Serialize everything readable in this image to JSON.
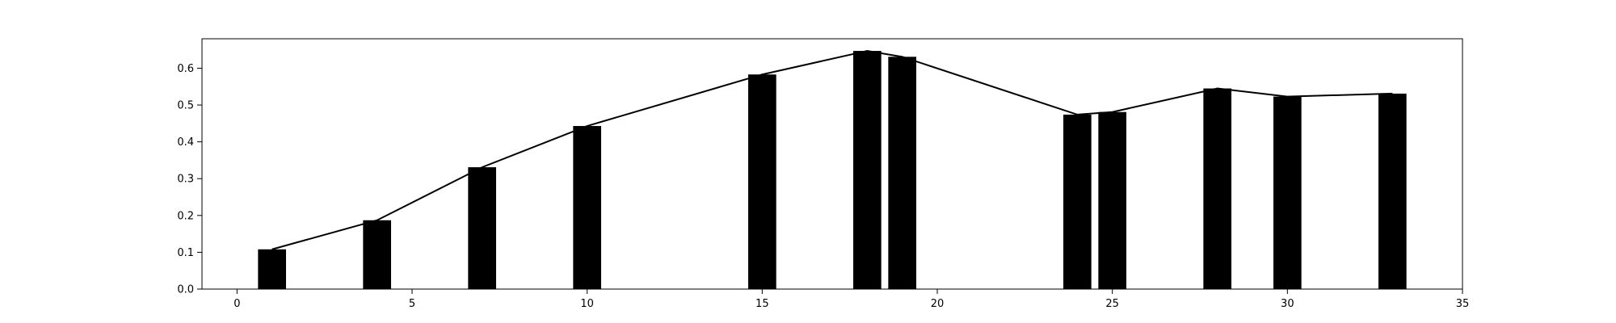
{
  "chart_data": {
    "type": "bar",
    "title": "",
    "xlabel": "",
    "ylabel": "",
    "xlim": [
      -1,
      35
    ],
    "ylim": [
      0,
      0.68
    ],
    "grid": false,
    "x": [
      1,
      4,
      7,
      10,
      15,
      18,
      19,
      24,
      25,
      28,
      30,
      33
    ],
    "values": [
      0.108,
      0.187,
      0.331,
      0.443,
      0.583,
      0.647,
      0.631,
      0.474,
      0.481,
      0.545,
      0.523,
      0.531
    ],
    "bar_width": 0.8,
    "line_overlay": true,
    "colors": {
      "bar": "#000000",
      "line": "#000000",
      "axes": "#000000"
    },
    "xticks": [
      0,
      5,
      10,
      15,
      20,
      25,
      30,
      35
    ],
    "xtick_labels": [
      "0",
      "5",
      "10",
      "15",
      "20",
      "25",
      "30",
      "35"
    ],
    "yticks": [
      0.0,
      0.1,
      0.2,
      0.3,
      0.4,
      0.5,
      0.6
    ],
    "ytick_labels": [
      "0.0",
      "0.1",
      "0.2",
      "0.3",
      "0.4",
      "0.5",
      "0.6"
    ]
  }
}
